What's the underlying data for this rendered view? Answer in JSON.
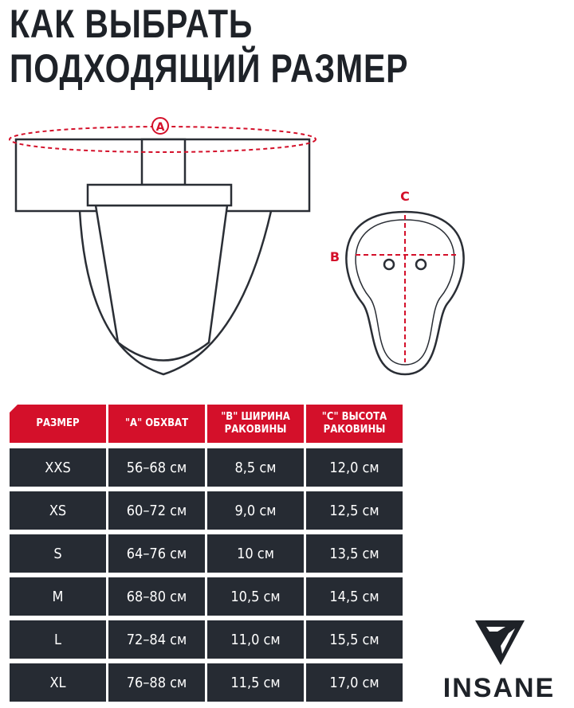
{
  "title": {
    "line1": "КАК ВЫБРАТЬ",
    "line2": "ПОДХОДЯЩИЙ РАЗМЕР"
  },
  "diagram": {
    "label_a": "A",
    "label_b": "B",
    "label_c": "C",
    "accent_color": "#d4102a"
  },
  "table": {
    "headers": [
      "РАЗМЕР",
      "\"A\" ОБХВАТ",
      "\"B\" ШИРИНА РАКОВИНЫ",
      "\"C\" ВЫСОТА РАКОВИНЫ"
    ],
    "rows": [
      [
        "XXS",
        "56–68 см",
        "8,5 см",
        "12,0 см"
      ],
      [
        "XS",
        "60–72 см",
        "9,0 см",
        "12,5 см"
      ],
      [
        "S",
        "64–76 см",
        "10 см",
        "13,5 см"
      ],
      [
        "M",
        "68–80 см",
        "10,5 см",
        "14,5 см"
      ],
      [
        "L",
        "72–84 см",
        "11,0 см",
        "15,5 см"
      ],
      [
        "XL",
        "76–88 см",
        "11,5 см",
        "17,0 см"
      ]
    ]
  },
  "logo": {
    "text": "INSANE"
  }
}
